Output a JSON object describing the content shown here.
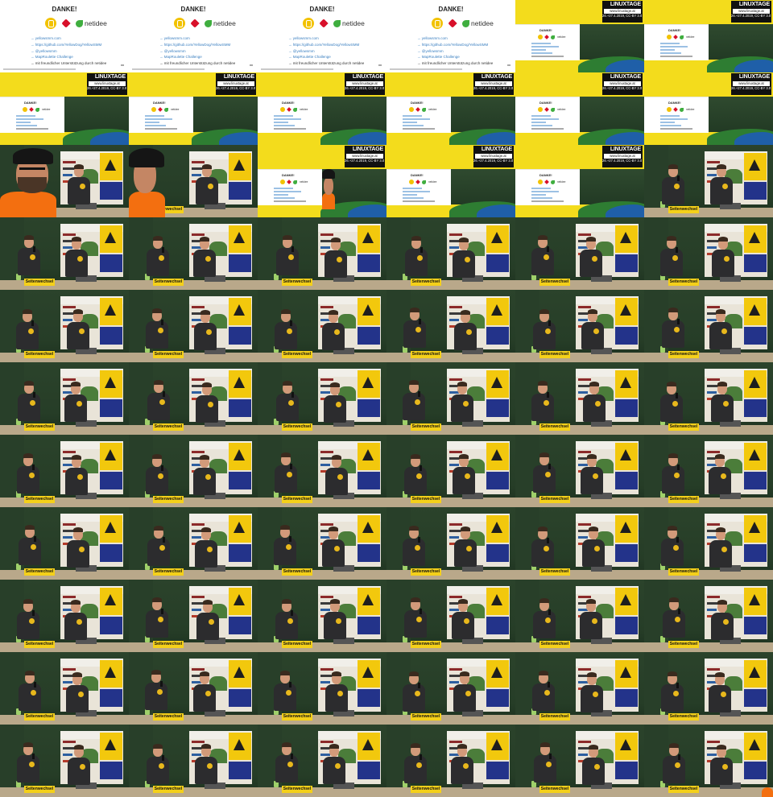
{
  "slide": {
    "title": "DANKE!",
    "brand": "netidee",
    "links": [
      "→ yellowsmm.com",
      "→ https://github.com/YellowDog/YellowSMM",
      "→ @yellowsmm",
      "→ MapRoulette Challenge",
      "→ mit freundlicher Unterstützung durch netidee"
    ]
  },
  "banner": {
    "logo": "LINUXTAGE",
    "url": "www.linuxtage.at",
    "license": "26.+27.4.2019, CC-BY 3.0"
  },
  "stage": {
    "sign": "Seitenwechsel"
  },
  "sheet": {
    "columns": 6,
    "rows": 11,
    "tiles": [
      "slide",
      "slide",
      "slide",
      "slide",
      "combo",
      "combo",
      "combo",
      "combo",
      "combo",
      "combo",
      "combo",
      "combo",
      "viewer-close",
      "viewer-cap",
      "combo-viewer",
      "combo",
      "combo",
      "stage",
      "stage",
      "stage",
      "stage",
      "stage",
      "stage",
      "stage",
      "stage",
      "stage",
      "stage",
      "stage",
      "stage",
      "stage",
      "stage",
      "stage",
      "stage",
      "stage",
      "stage",
      "stage",
      "stage",
      "stage",
      "stage",
      "stage",
      "stage",
      "stage",
      "stage",
      "stage",
      "stage",
      "stage",
      "stage",
      "stage",
      "stage",
      "stage",
      "stage",
      "stage",
      "stage",
      "stage",
      "stage",
      "stage",
      "stage",
      "stage",
      "stage",
      "stage",
      "stage",
      "stage",
      "stage",
      "stage",
      "stage",
      "stage-edge"
    ]
  },
  "colors": {
    "slide_yellow": "#f3dc1c",
    "shirt_orange": "#f36f10",
    "chalkboard": "#2b432b",
    "tshirt": "#2c2c2e",
    "logo_yellow": "#e8b81c"
  }
}
